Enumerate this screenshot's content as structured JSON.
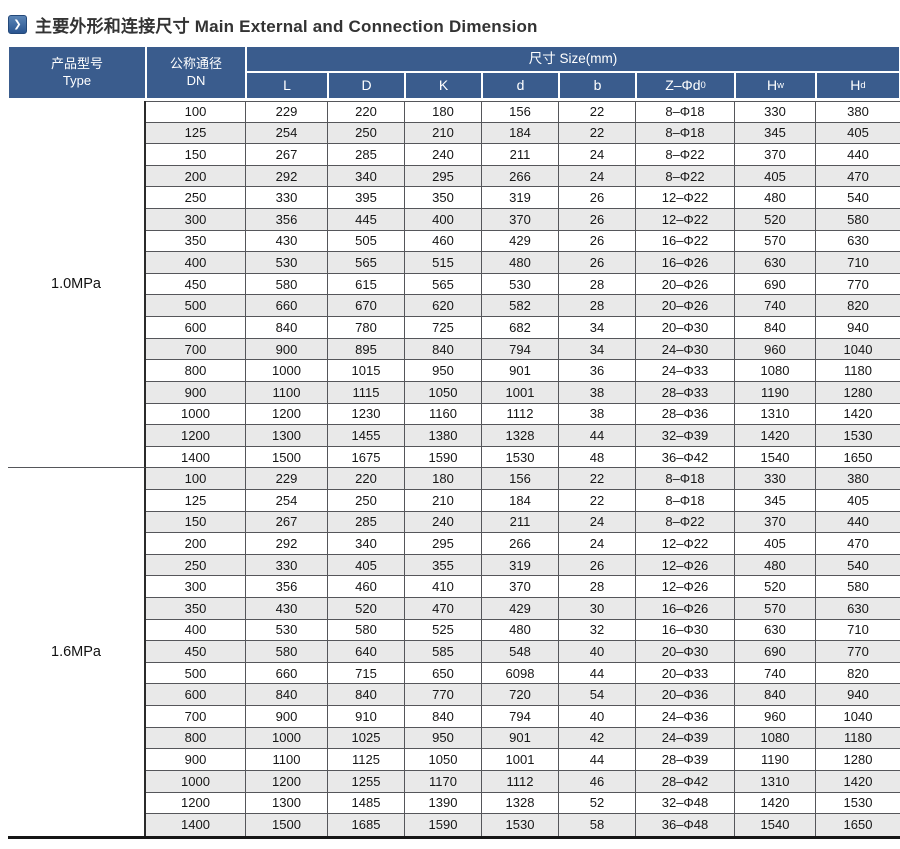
{
  "page": {
    "title": "主要外形和连接尺寸 Main External and Connection Dimension"
  },
  "colors": {
    "header_blue": "#3a5c8d",
    "row_stripe": "#e9e9e9",
    "grid_line": "#55565a",
    "heavy_bottom_line": "#161616",
    "icon_blue": "#2d5b97",
    "title_text": "#333333"
  },
  "icons": {
    "title_marker": "chevron-right-icon"
  },
  "table": {
    "header": {
      "type": {
        "zh": "产品型号",
        "en": "Type"
      },
      "dn": {
        "zh": "公称通径",
        "en": "DN"
      },
      "size_label": "尺寸 Size(mm)",
      "size_columns": [
        {
          "id": "L",
          "text": "L"
        },
        {
          "id": "D",
          "text": "D"
        },
        {
          "id": "K",
          "text": "K"
        },
        {
          "id": "d",
          "text": "d"
        },
        {
          "id": "b",
          "text": "b"
        },
        {
          "id": "z-phi-d0",
          "text": "Z–Φd",
          "sub": "0"
        },
        {
          "id": "hw",
          "text": "H",
          "sub": "w"
        },
        {
          "id": "hd",
          "text": "H",
          "sub": "d"
        }
      ]
    },
    "sections": [
      {
        "type": "1.0MPa",
        "rows": [
          [
            100,
            229,
            220,
            180,
            156,
            22,
            "8–Φ18",
            330,
            380
          ],
          [
            125,
            254,
            250,
            210,
            184,
            22,
            "8–Φ18",
            345,
            405
          ],
          [
            150,
            267,
            285,
            240,
            211,
            24,
            "8–Φ22",
            370,
            440
          ],
          [
            200,
            292,
            340,
            295,
            266,
            24,
            "8–Φ22",
            405,
            470
          ],
          [
            250,
            330,
            395,
            350,
            319,
            26,
            "12–Φ22",
            480,
            540
          ],
          [
            300,
            356,
            445,
            400,
            370,
            26,
            "12–Φ22",
            520,
            580
          ],
          [
            350,
            430,
            505,
            460,
            429,
            26,
            "16–Φ22",
            570,
            630
          ],
          [
            400,
            530,
            565,
            515,
            480,
            26,
            "16–Φ26",
            630,
            710
          ],
          [
            450,
            580,
            615,
            565,
            530,
            28,
            "20–Φ26",
            690,
            770
          ],
          [
            500,
            660,
            670,
            620,
            582,
            28,
            "20–Φ26",
            740,
            820
          ],
          [
            600,
            840,
            780,
            725,
            682,
            34,
            "20–Φ30",
            840,
            940
          ],
          [
            700,
            900,
            895,
            840,
            794,
            34,
            "24–Φ30",
            960,
            1040
          ],
          [
            800,
            1000,
            1015,
            950,
            901,
            36,
            "24–Φ33",
            1080,
            1180
          ],
          [
            900,
            1100,
            1115,
            1050,
            1001,
            38,
            "28–Φ33",
            1190,
            1280
          ],
          [
            1000,
            1200,
            1230,
            1160,
            1112,
            38,
            "28–Φ36",
            1310,
            1420
          ],
          [
            1200,
            1300,
            1455,
            1380,
            1328,
            44,
            "32–Φ39",
            1420,
            1530
          ],
          [
            1400,
            1500,
            1675,
            1590,
            1530,
            48,
            "36–Φ42",
            1540,
            1650
          ]
        ]
      },
      {
        "type": "1.6MPa",
        "rows": [
          [
            100,
            229,
            220,
            180,
            156,
            22,
            "8–Φ18",
            330,
            380
          ],
          [
            125,
            254,
            250,
            210,
            184,
            22,
            "8–Φ18",
            345,
            405
          ],
          [
            150,
            267,
            285,
            240,
            211,
            24,
            "8–Φ22",
            370,
            440
          ],
          [
            200,
            292,
            340,
            295,
            266,
            24,
            "12–Φ22",
            405,
            470
          ],
          [
            250,
            330,
            405,
            355,
            319,
            26,
            "12–Φ26",
            480,
            540
          ],
          [
            300,
            356,
            460,
            410,
            370,
            28,
            "12–Φ26",
            520,
            580
          ],
          [
            350,
            430,
            520,
            470,
            429,
            30,
            "16–Φ26",
            570,
            630
          ],
          [
            400,
            530,
            580,
            525,
            480,
            32,
            "16–Φ30",
            630,
            710
          ],
          [
            450,
            580,
            640,
            585,
            548,
            40,
            "20–Φ30",
            690,
            770
          ],
          [
            500,
            660,
            715,
            650,
            6098,
            44,
            "20–Φ33",
            740,
            820
          ],
          [
            600,
            840,
            840,
            770,
            720,
            54,
            "20–Φ36",
            840,
            940
          ],
          [
            700,
            900,
            910,
            840,
            794,
            40,
            "24–Φ36",
            960,
            1040
          ],
          [
            800,
            1000,
            1025,
            950,
            901,
            42,
            "24–Φ39",
            1080,
            1180
          ],
          [
            900,
            1100,
            1125,
            1050,
            1001,
            44,
            "28–Φ39",
            1190,
            1280
          ],
          [
            1000,
            1200,
            1255,
            1170,
            1112,
            46,
            "28–Φ42",
            1310,
            1420
          ],
          [
            1200,
            1300,
            1485,
            1390,
            1328,
            52,
            "32–Φ48",
            1420,
            1530
          ],
          [
            1400,
            1500,
            1685,
            1590,
            1530,
            58,
            "36–Φ48",
            1540,
            1650
          ]
        ]
      }
    ]
  }
}
